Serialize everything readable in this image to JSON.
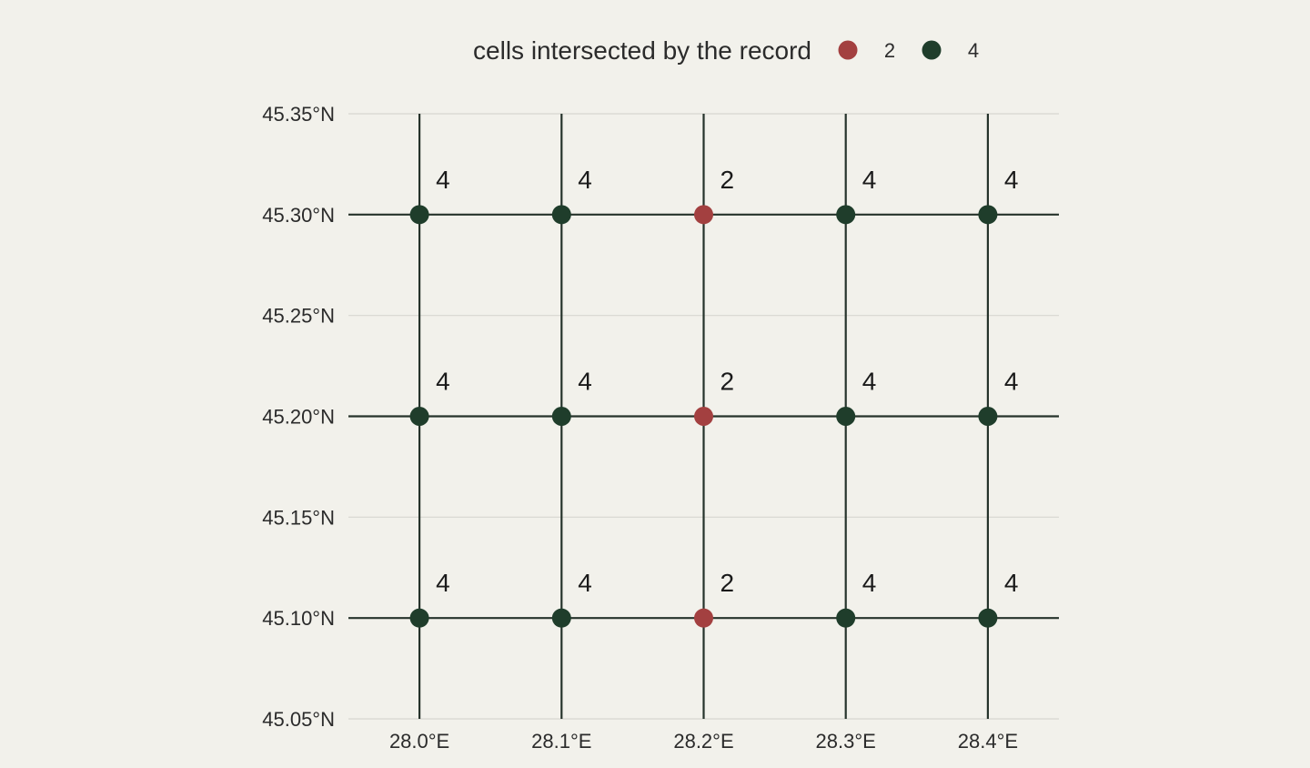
{
  "chart_data": {
    "type": "scatter",
    "title": "",
    "xlabel": "",
    "ylabel": "",
    "xlim": [
      27.95,
      28.45
    ],
    "ylim": [
      45.05,
      45.35
    ],
    "x_ticks": [
      28.0,
      28.1,
      28.2,
      28.3,
      28.4
    ],
    "x_tick_labels": [
      "28.0°E",
      "28.1°E",
      "28.2°E",
      "28.3°E",
      "28.4°E"
    ],
    "y_ticks": [
      45.05,
      45.1,
      45.15,
      45.2,
      45.25,
      45.3,
      45.35
    ],
    "y_tick_labels": [
      "45.05°N",
      "45.10°N",
      "45.15°N",
      "45.20°N",
      "45.25°N",
      "45.30°N",
      "45.35°N"
    ],
    "grid_lines_x": [
      28.0,
      28.1,
      28.2,
      28.3,
      28.4
    ],
    "grid_lines_y": [
      45.1,
      45.2,
      45.3
    ],
    "legend": {
      "title": "cells intersected by the record",
      "placement": "top",
      "entries": [
        {
          "label": "2",
          "color": "#a34040"
        },
        {
          "label": "4",
          "color": "#1f3d2b"
        }
      ]
    },
    "points": [
      {
        "x": 28.0,
        "y": 45.3,
        "value": 4,
        "label": "4"
      },
      {
        "x": 28.1,
        "y": 45.3,
        "value": 4,
        "label": "4"
      },
      {
        "x": 28.2,
        "y": 45.3,
        "value": 2,
        "label": "2"
      },
      {
        "x": 28.3,
        "y": 45.3,
        "value": 4,
        "label": "4"
      },
      {
        "x": 28.4,
        "y": 45.3,
        "value": 4,
        "label": "4"
      },
      {
        "x": 28.0,
        "y": 45.2,
        "value": 4,
        "label": "4"
      },
      {
        "x": 28.1,
        "y": 45.2,
        "value": 4,
        "label": "4"
      },
      {
        "x": 28.2,
        "y": 45.2,
        "value": 2,
        "label": "2"
      },
      {
        "x": 28.3,
        "y": 45.2,
        "value": 4,
        "label": "4"
      },
      {
        "x": 28.4,
        "y": 45.2,
        "value": 4,
        "label": "4"
      },
      {
        "x": 28.0,
        "y": 45.1,
        "value": 4,
        "label": "4"
      },
      {
        "x": 28.1,
        "y": 45.1,
        "value": 4,
        "label": "4"
      },
      {
        "x": 28.2,
        "y": 45.1,
        "value": 2,
        "label": "2"
      },
      {
        "x": 28.3,
        "y": 45.1,
        "value": 4,
        "label": "4"
      },
      {
        "x": 28.4,
        "y": 45.1,
        "value": 4,
        "label": "4"
      }
    ],
    "colors": {
      "background": "#f2f1eb",
      "panel_grid": "#d7d7d0",
      "cell_lines": "#26332b"
    }
  }
}
